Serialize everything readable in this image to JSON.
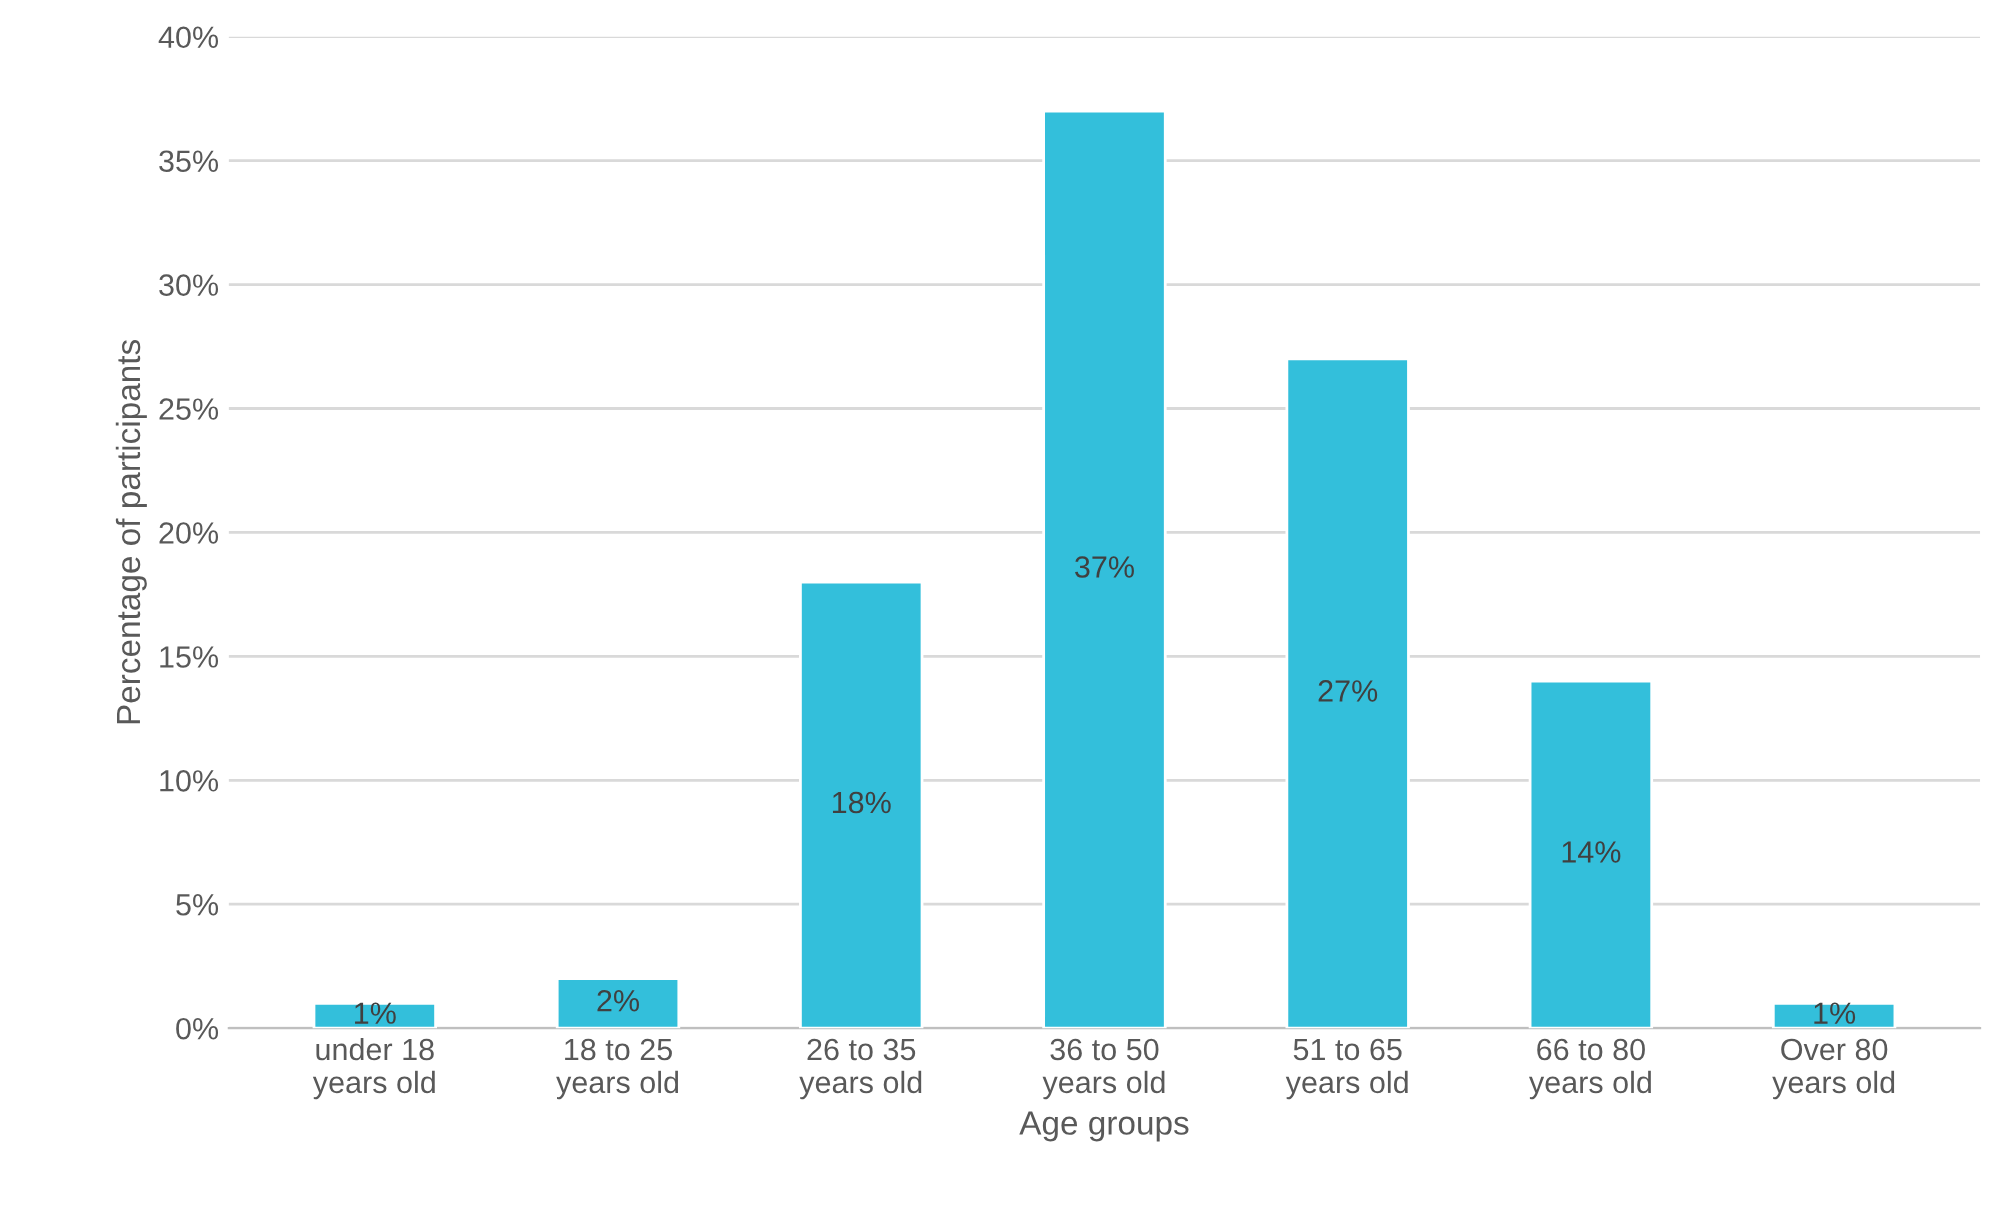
{
  "chart_data": {
    "type": "bar",
    "xlabel": "Age groups",
    "ylabel": "Percentage of participants",
    "categories": [
      "under 18\nyears old",
      "18 to 25\nyears old",
      "26 to 35\nyears old",
      "36 to 50\nyears old",
      "51 to 65\nyears old",
      "66 to 80\nyears old",
      "Over 80\nyears old"
    ],
    "values": [
      1,
      2,
      18,
      37,
      27,
      14,
      1
    ],
    "color": "#33bfdb",
    "ylim": [
      0,
      40
    ],
    "yticks": [
      {
        "value": 0,
        "label": "0%"
      },
      {
        "value": 5,
        "label": "5%"
      },
      {
        "value": 10,
        "label": "10%"
      },
      {
        "value": 15,
        "label": "15%"
      },
      {
        "value": 20,
        "label": "20%"
      },
      {
        "value": 25,
        "label": "25%"
      },
      {
        "value": 30,
        "label": "30%"
      },
      {
        "value": 35,
        "label": "35%"
      },
      {
        "value": 40,
        "label": "40%"
      }
    ],
    "value_labels": [
      "1%",
      "2%",
      "18%",
      "37%",
      "27%",
      "14%",
      "1%"
    ],
    "grid": "y"
  }
}
